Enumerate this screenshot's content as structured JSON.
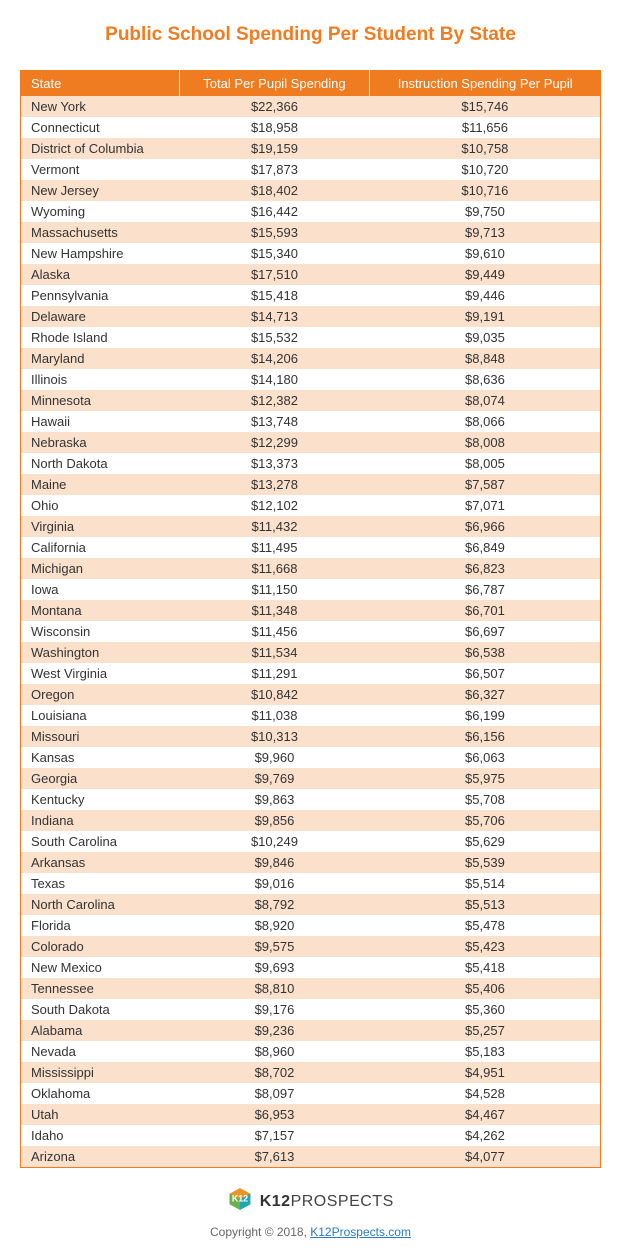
{
  "title": "Public School Spending Per Student By State",
  "table": {
    "type": "table",
    "header_bg": "#f07c22",
    "header_fg": "#ffffff",
    "row_odd_bg": "#fbe0cc",
    "row_even_bg": "#ffffff",
    "border_color": "#f07c22",
    "font_size": 13,
    "columns": [
      {
        "label": "State",
        "align": "left"
      },
      {
        "label": "Total Per Pupil Spending",
        "align": "center"
      },
      {
        "label": "Instruction Spending Per Pupil",
        "align": "center"
      }
    ],
    "rows": [
      [
        "New York",
        "$22,366",
        "$15,746"
      ],
      [
        "Connecticut",
        "$18,958",
        "$11,656"
      ],
      [
        "District of Columbia",
        "$19,159",
        "$10,758"
      ],
      [
        "Vermont",
        "$17,873",
        "$10,720"
      ],
      [
        "New Jersey",
        "$18,402",
        "$10,716"
      ],
      [
        "Wyoming",
        "$16,442",
        "$9,750"
      ],
      [
        "Massachusetts",
        "$15,593",
        "$9,713"
      ],
      [
        "New Hampshire",
        "$15,340",
        "$9,610"
      ],
      [
        "Alaska",
        "$17,510",
        "$9,449"
      ],
      [
        "Pennsylvania",
        "$15,418",
        "$9,446"
      ],
      [
        "Delaware",
        "$14,713",
        "$9,191"
      ],
      [
        "Rhode Island",
        "$15,532",
        "$9,035"
      ],
      [
        "Maryland",
        "$14,206",
        "$8,848"
      ],
      [
        "Illinois",
        "$14,180",
        "$8,636"
      ],
      [
        "Minnesota",
        "$12,382",
        "$8,074"
      ],
      [
        "Hawaii",
        "$13,748",
        "$8,066"
      ],
      [
        "Nebraska",
        "$12,299",
        "$8,008"
      ],
      [
        "North Dakota",
        "$13,373",
        "$8,005"
      ],
      [
        "Maine",
        "$13,278",
        "$7,587"
      ],
      [
        "Ohio",
        "$12,102",
        "$7,071"
      ],
      [
        "Virginia",
        "$11,432",
        "$6,966"
      ],
      [
        "California",
        "$11,495",
        "$6,849"
      ],
      [
        "Michigan",
        "$11,668",
        "$6,823"
      ],
      [
        "Iowa",
        "$11,150",
        "$6,787"
      ],
      [
        "Montana",
        "$11,348",
        "$6,701"
      ],
      [
        "Wisconsin",
        "$11,456",
        "$6,697"
      ],
      [
        "Washington",
        "$11,534",
        "$6,538"
      ],
      [
        "West Virginia",
        "$11,291",
        "$6,507"
      ],
      [
        "Oregon",
        "$10,842",
        "$6,327"
      ],
      [
        "Louisiana",
        "$11,038",
        "$6,199"
      ],
      [
        "Missouri",
        "$10,313",
        "$6,156"
      ],
      [
        "Kansas",
        "$9,960",
        "$6,063"
      ],
      [
        "Georgia",
        "$9,769",
        "$5,975"
      ],
      [
        "Kentucky",
        "$9,863",
        "$5,708"
      ],
      [
        "Indiana",
        "$9,856",
        "$5,706"
      ],
      [
        "South Carolina",
        "$10,249",
        "$5,629"
      ],
      [
        "Arkansas",
        "$9,846",
        "$5,539"
      ],
      [
        "Texas",
        "$9,016",
        "$5,514"
      ],
      [
        "North Carolina",
        "$8,792",
        "$5,513"
      ],
      [
        "Florida",
        "$8,920",
        "$5,478"
      ],
      [
        "Colorado",
        "$9,575",
        "$5,423"
      ],
      [
        "New Mexico",
        "$9,693",
        "$5,418"
      ],
      [
        "Tennessee",
        "$8,810",
        "$5,406"
      ],
      [
        "South Dakota",
        "$9,176",
        "$5,360"
      ],
      [
        "Alabama",
        "$9,236",
        "$5,257"
      ],
      [
        "Nevada",
        "$8,960",
        "$5,183"
      ],
      [
        "Mississippi",
        "$8,702",
        "$4,951"
      ],
      [
        "Oklahoma",
        "$8,097",
        "$4,528"
      ],
      [
        "Utah",
        "$6,953",
        "$4,467"
      ],
      [
        "Idaho",
        "$7,157",
        "$4,262"
      ],
      [
        "Arizona",
        "$7,613",
        "$4,077"
      ]
    ]
  },
  "brand": {
    "prefix": "K12",
    "suffix": "PROSPECTS"
  },
  "copyright": {
    "text": "Copyright © 2018, ",
    "link_text": "K12Prospects.com"
  }
}
